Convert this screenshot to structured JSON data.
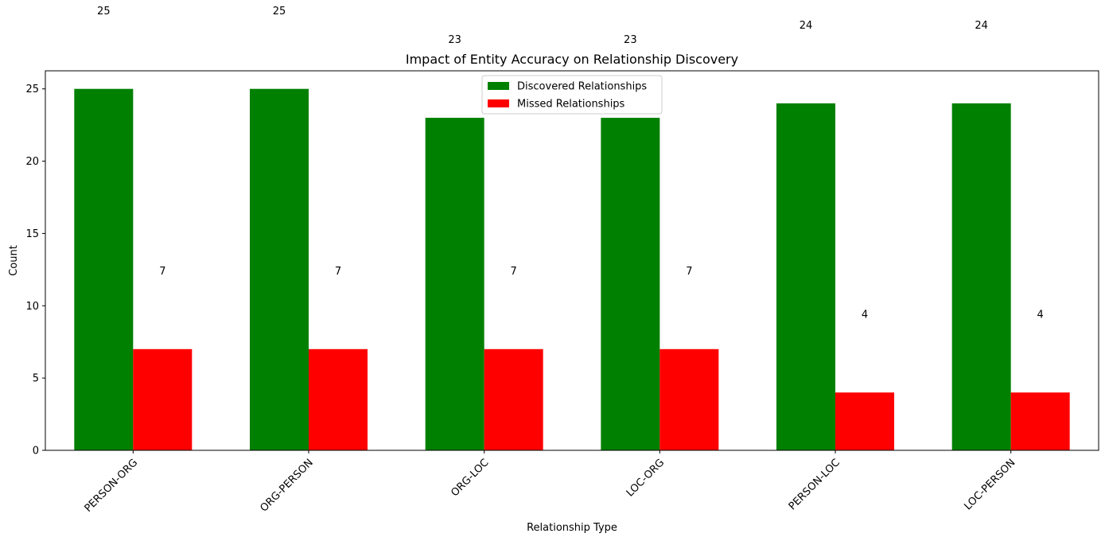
{
  "chart_data": {
    "type": "bar",
    "title": "Impact of Entity Accuracy on Relationship Discovery",
    "xlabel": "Relationship Type",
    "ylabel": "Count",
    "categories": [
      "PERSON-ORG",
      "ORG-PERSON",
      "ORG-LOC",
      "LOC-ORG",
      "PERSON-LOC",
      "LOC-PERSON"
    ],
    "series": [
      {
        "name": "Discovered Relationships",
        "color": "#008000",
        "values": [
          25,
          25,
          23,
          23,
          24,
          24
        ]
      },
      {
        "name": "Missed Relationships",
        "color": "#ff0000",
        "values": [
          7,
          7,
          7,
          7,
          4,
          4
        ]
      }
    ],
    "ylim": [
      0,
      26.25
    ],
    "yticks": [
      0,
      5,
      10,
      15,
      20,
      25
    ],
    "grid": false,
    "legend_position": "upper-center",
    "data_label_offset": 5
  }
}
